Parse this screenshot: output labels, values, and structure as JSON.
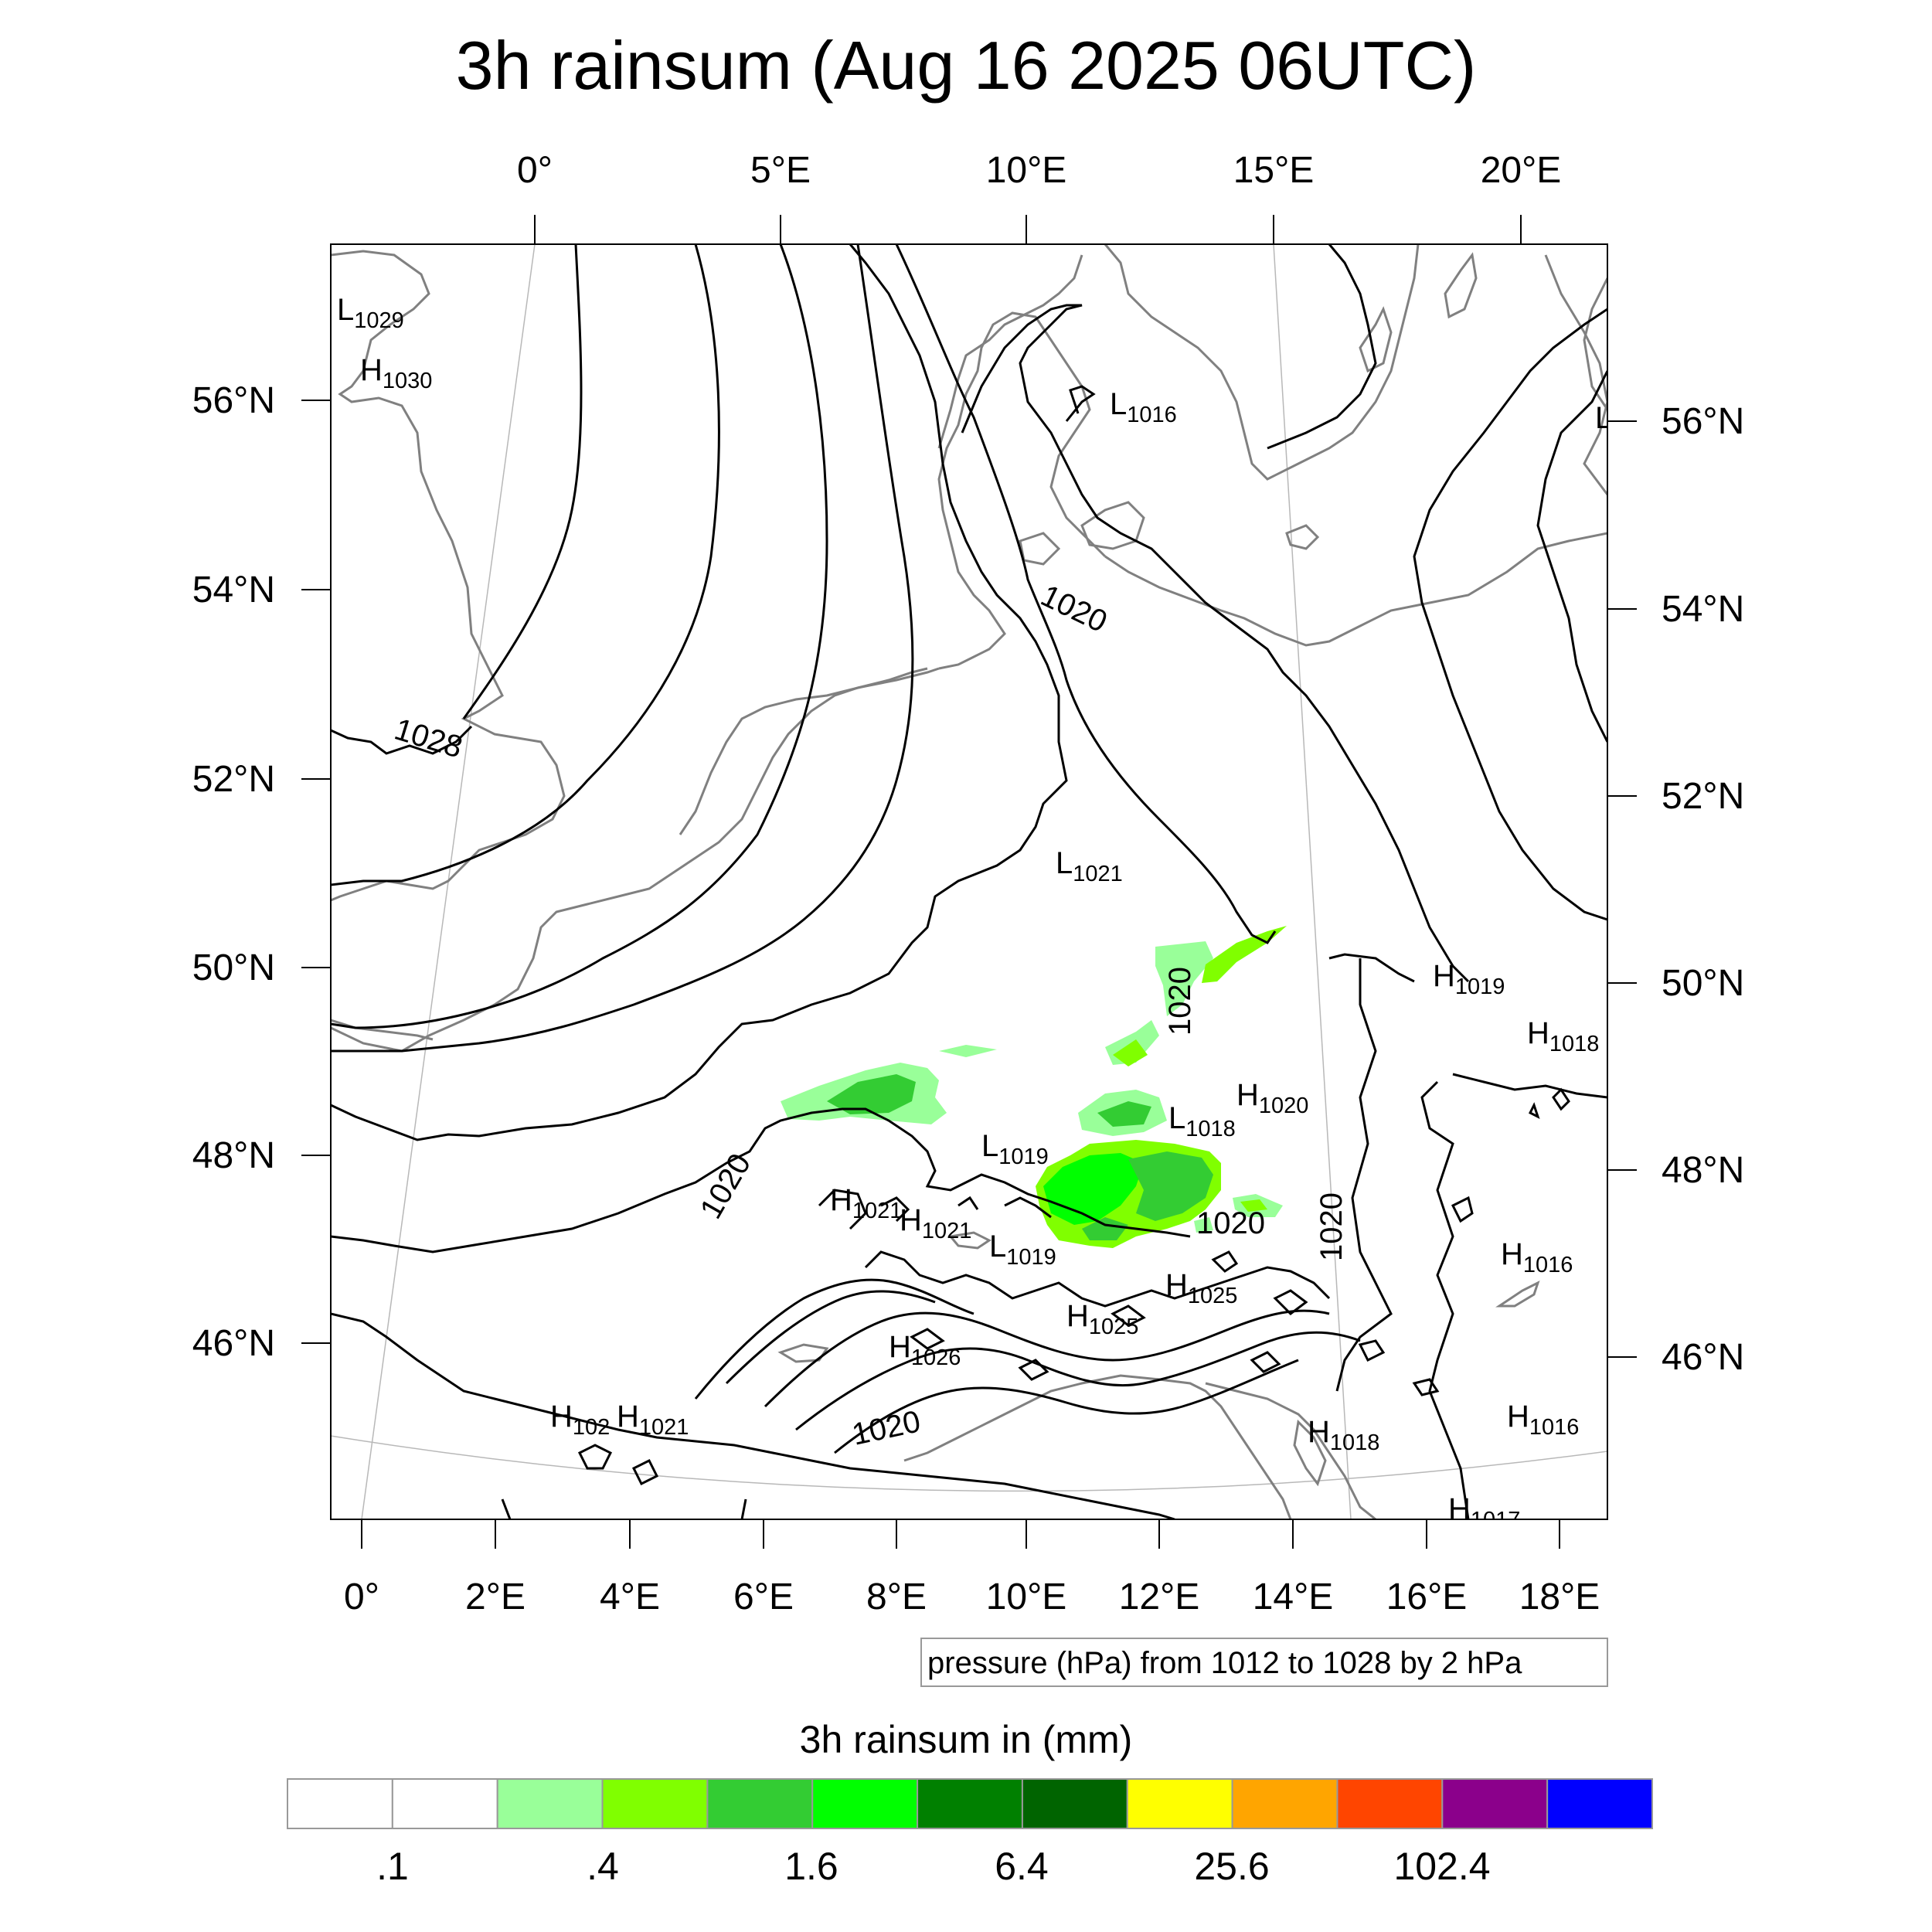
{
  "title": "3h rainsum (Aug 16 2025 06UTC)",
  "top_lon_labels": [
    "0°",
    "5°E",
    "10°E",
    "15°E",
    "20°E"
  ],
  "bottom_lon_labels": [
    "0°",
    "2°E",
    "4°E",
    "6°E",
    "8°E",
    "10°E",
    "12°E",
    "14°E",
    "16°E",
    "18°E"
  ],
  "left_lat_labels": [
    "56°N",
    "54°N",
    "52°N",
    "50°N",
    "48°N",
    "46°N"
  ],
  "right_lat_labels": [
    "56°N",
    "54°N",
    "52°N",
    "50°N",
    "48°N",
    "46°N"
  ],
  "pressure_centers": [
    {
      "type": "L",
      "value": "1029"
    },
    {
      "type": "H",
      "value": "1030"
    },
    {
      "type": "L",
      "value": "1016"
    },
    {
      "type": "L",
      "value": ""
    },
    {
      "type": "L",
      "value": "1021"
    },
    {
      "type": "H",
      "value": "1019"
    },
    {
      "type": "H",
      "value": "1018"
    },
    {
      "type": "H",
      "value": "1020"
    },
    {
      "type": "L",
      "value": "1018"
    },
    {
      "type": "L",
      "value": "1019"
    },
    {
      "type": "H",
      "value": "1021"
    },
    {
      "type": "H",
      "value": "1021"
    },
    {
      "type": "L",
      "value": "1019"
    },
    {
      "type": "H",
      "value": "1025"
    },
    {
      "type": "H",
      "value": "1025"
    },
    {
      "type": "H",
      "value": "1026"
    },
    {
      "type": "H",
      "value": "1016"
    },
    {
      "type": "H",
      "value": "102"
    },
    {
      "type": "H",
      "value": "1021"
    },
    {
      "type": "H",
      "value": "1018"
    },
    {
      "type": "H",
      "value": "1016"
    },
    {
      "type": "H",
      "value": "1017"
    }
  ],
  "contour_labels": [
    "1028",
    "1020",
    "1020",
    "1020",
    "1020",
    "1020",
    "1020"
  ],
  "contour_info": "pressure (hPa) from 1012 to 1028 by 2 hPa",
  "colorbar": {
    "title": "3h rainsum in (mm)",
    "colors": [
      "#ffffff",
      "#ffffff",
      "#99ff99",
      "#80ff00",
      "#33cc33",
      "#00ff00",
      "#008000",
      "#006400",
      "#ffff00",
      "#ffa500",
      "#ff4500",
      "#8b008b",
      "#0000ff"
    ],
    "tick_labels": [
      ".1",
      ".4",
      "1.6",
      "6.4",
      "25.6",
      "102.4"
    ]
  },
  "precip_colors": {
    "light": "#99ff99",
    "medium": "#80ff00",
    "heavy": "#33cc33",
    "bright": "#00ff00"
  }
}
